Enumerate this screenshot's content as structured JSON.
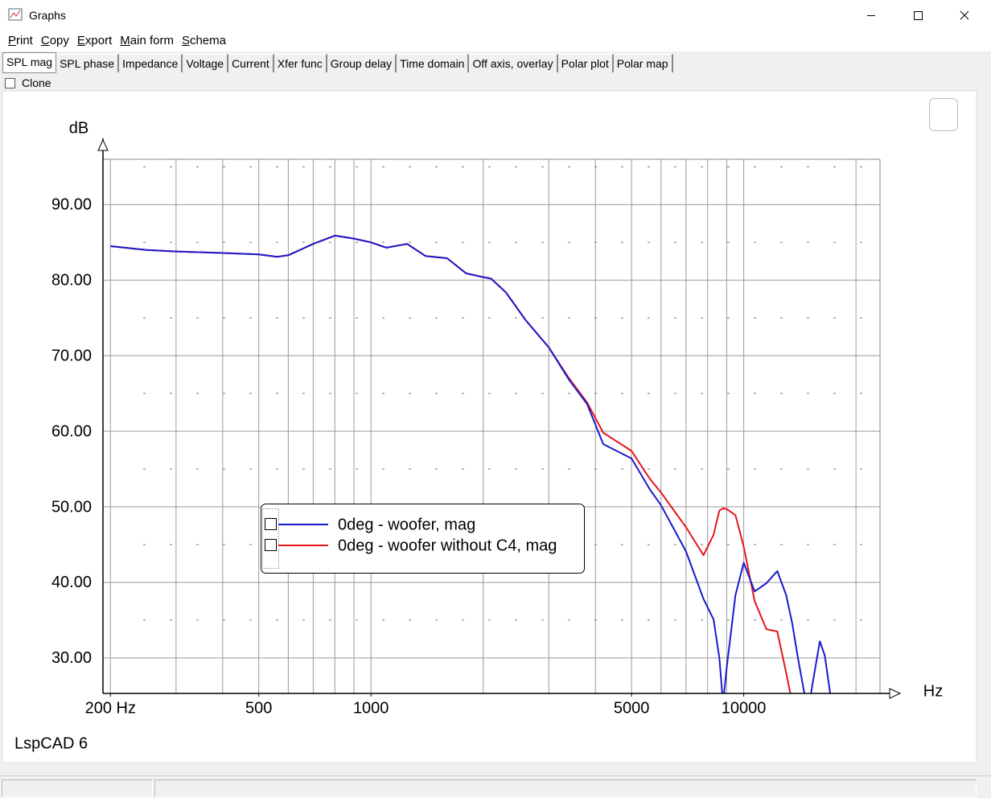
{
  "window": {
    "title": "Graphs"
  },
  "menu": [
    "Print",
    "Copy",
    "Export",
    "Main form",
    "Schema"
  ],
  "tabs": [
    "SPL mag",
    "SPL phase",
    "Impedance",
    "Voltage",
    "Current",
    "Xfer func",
    "Group delay",
    "Time domain",
    "Off axis, overlay",
    "Polar plot",
    "Polar map"
  ],
  "active_tab": 0,
  "clone_label": "Clone",
  "footer_text": "LspCAD 6",
  "chart_data": {
    "type": "line",
    "ylabel": "dB",
    "xlabel": "Hz",
    "xscale": "log",
    "xlim": [
      191,
      23200
    ],
    "ylim": [
      25.3,
      96
    ],
    "xticks": [
      {
        "value": 200,
        "label": "200 Hz"
      },
      500,
      1000,
      5000,
      10000
    ],
    "xgrid": [
      200,
      300,
      400,
      500,
      600,
      700,
      800,
      900,
      1000,
      2000,
      3000,
      4000,
      5000,
      6000,
      7000,
      8000,
      9000,
      10000,
      20000
    ],
    "yticks": [
      {
        "value": 30,
        "label": "30.00"
      },
      {
        "value": 40,
        "label": "40.00"
      },
      {
        "value": 50,
        "label": "50.00"
      },
      {
        "value": 60,
        "label": "60.00"
      },
      {
        "value": 70,
        "label": "70.00"
      },
      {
        "value": 80,
        "label": "80.00"
      },
      {
        "value": 90,
        "label": "90.00"
      }
    ],
    "yminor": [
      35,
      45,
      55,
      65,
      75,
      85,
      95
    ],
    "x": [
      200,
      250,
      300,
      400,
      500,
      560,
      600,
      700,
      800,
      900,
      1000,
      1100,
      1250,
      1400,
      1600,
      1800,
      2000,
      2100,
      2300,
      2600,
      3000,
      3400,
      3800,
      4200,
      5000,
      5600,
      6000,
      7000,
      7800,
      8300,
      8600,
      8800,
      9000,
      9500,
      10000,
      10700,
      11500,
      12300,
      13000,
      13500,
      14000,
      14700,
      15000,
      15300,
      16000,
      16500,
      17200
    ],
    "series": [
      {
        "name": "0deg - woofer, mag",
        "color": "#1a1acd",
        "values": [
          84.5,
          84.0,
          83.8,
          83.6,
          83.4,
          83.1,
          83.3,
          84.8,
          85.9,
          85.5,
          85.0,
          84.3,
          84.8,
          83.2,
          82.9,
          80.9,
          80.4,
          80.2,
          78.4,
          74.7,
          71.1,
          66.8,
          63.6,
          58.3,
          56.4,
          52.3,
          50.2,
          44.1,
          37.8,
          35.1,
          30.0,
          24.0,
          28.7,
          38.3,
          42.6,
          38.8,
          39.9,
          41.5,
          38.3,
          34.5,
          29.8,
          24.0,
          24.0,
          26.6,
          32.2,
          30.3,
          24.0
        ]
      },
      {
        "name": "0deg - woofer without C4, mag",
        "color": "#e8141c",
        "values": [
          84.5,
          84.0,
          83.8,
          83.6,
          83.4,
          83.1,
          83.3,
          84.8,
          85.9,
          85.5,
          85.0,
          84.3,
          84.8,
          83.2,
          82.9,
          80.9,
          80.4,
          80.2,
          78.4,
          74.7,
          71.1,
          67.0,
          63.8,
          59.8,
          57.4,
          53.7,
          51.9,
          47.3,
          43.6,
          46.3,
          49.5,
          49.8,
          49.7,
          48.9,
          44.7,
          37.5,
          33.8,
          33.5,
          28.0,
          24.0,
          null,
          null,
          null,
          null,
          null,
          null,
          null
        ]
      }
    ]
  }
}
